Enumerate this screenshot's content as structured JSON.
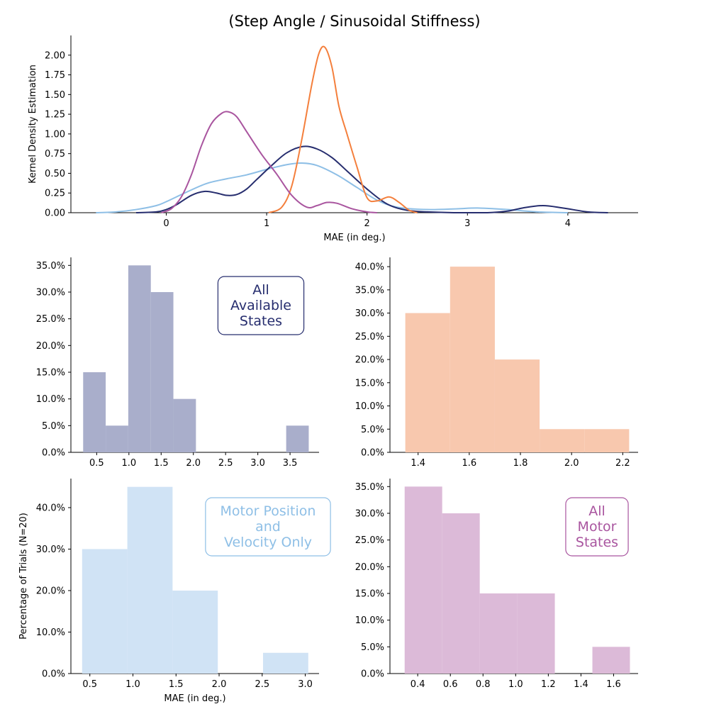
{
  "figure": {
    "title": "(Step Angle / Sinusoidal Stiffness)"
  },
  "chart_data": [
    {
      "type": "line",
      "xlabel": "MAE (in deg.)",
      "ylabel": "Kernel Density Estimation",
      "xlim": [
        -0.95,
        4.7
      ],
      "ylim": [
        0,
        2.25
      ],
      "xticks": [
        0,
        1,
        2,
        3,
        4
      ],
      "yticks": [
        0,
        0.25,
        0.5,
        0.75,
        1.0,
        1.25,
        1.5,
        1.75,
        2.0
      ],
      "ytick_decimals": 2,
      "grid": false,
      "series": [
        {
          "color": "#8ebfe6",
          "x": [
            -0.7,
            -0.5,
            -0.3,
            -0.1,
            0.0,
            0.2,
            0.4,
            0.6,
            0.8,
            1.0,
            1.2,
            1.35,
            1.5,
            1.7,
            1.9,
            2.1,
            2.3,
            2.6,
            2.9,
            3.1,
            3.4,
            3.7,
            4.0
          ],
          "y": [
            0.0,
            0.01,
            0.04,
            0.09,
            0.14,
            0.26,
            0.37,
            0.43,
            0.48,
            0.55,
            0.61,
            0.63,
            0.6,
            0.48,
            0.32,
            0.16,
            0.07,
            0.04,
            0.05,
            0.06,
            0.04,
            0.01,
            0.0
          ]
        },
        {
          "color": "#262d6e",
          "x": [
            -0.3,
            -0.1,
            0.0,
            0.1,
            0.25,
            0.38,
            0.5,
            0.6,
            0.7,
            0.8,
            0.9,
            1.05,
            1.2,
            1.36,
            1.5,
            1.65,
            1.8,
            2.0,
            2.2,
            2.4,
            2.6,
            2.9,
            3.2,
            3.4,
            3.55,
            3.75,
            3.95,
            4.2,
            4.4
          ],
          "y": [
            0.0,
            0.01,
            0.04,
            0.1,
            0.22,
            0.27,
            0.25,
            0.22,
            0.23,
            0.3,
            0.42,
            0.6,
            0.76,
            0.84,
            0.81,
            0.7,
            0.53,
            0.3,
            0.11,
            0.03,
            0.01,
            0.0,
            0.0,
            0.02,
            0.06,
            0.09,
            0.06,
            0.01,
            0.0
          ]
        },
        {
          "color": "#f47f3c",
          "x": [
            1.02,
            1.15,
            1.25,
            1.35,
            1.45,
            1.52,
            1.58,
            1.65,
            1.72,
            1.8,
            1.9,
            2.0,
            2.1,
            2.22,
            2.32,
            2.42,
            2.5
          ],
          "y": [
            0.0,
            0.07,
            0.34,
            0.93,
            1.63,
            2.02,
            2.1,
            1.85,
            1.35,
            1.0,
            0.58,
            0.19,
            0.15,
            0.2,
            0.13,
            0.03,
            0.0
          ]
        },
        {
          "color": "#a9559f",
          "x": [
            -0.05,
            0.05,
            0.15,
            0.25,
            0.35,
            0.45,
            0.55,
            0.62,
            0.7,
            0.8,
            0.95,
            1.1,
            1.25,
            1.4,
            1.5,
            1.6,
            1.7,
            1.85,
            2.0,
            2.1
          ],
          "y": [
            0.0,
            0.05,
            0.2,
            0.48,
            0.85,
            1.13,
            1.26,
            1.28,
            1.22,
            1.03,
            0.74,
            0.49,
            0.22,
            0.07,
            0.09,
            0.13,
            0.12,
            0.05,
            0.01,
            0.0
          ]
        }
      ]
    },
    {
      "type": "bar",
      "label": "All\nAvailable\nStates",
      "label_color": "#262d6e",
      "color": "#a9aecb",
      "xlim": [
        0.1,
        3.95
      ],
      "ylim": [
        0,
        36.5
      ],
      "xticks": [
        0.5,
        1.0,
        1.5,
        2.0,
        2.5,
        3.0,
        3.5
      ],
      "yticks": [
        0,
        5,
        10,
        15,
        20,
        25,
        30,
        35
      ],
      "xtick_decimals": 1,
      "bin_edges": [
        0.29,
        0.64,
        0.99,
        1.34,
        1.69,
        2.04,
        2.39,
        2.74,
        3.09,
        3.44,
        3.79
      ],
      "values": [
        15,
        5,
        35,
        30,
        10,
        0,
        0,
        0,
        0,
        5
      ]
    },
    {
      "type": "bar",
      "label_color": "#f47f3c",
      "color": "#f8c8ae",
      "xlim": [
        1.29,
        2.26
      ],
      "ylim": [
        0,
        42
      ],
      "xticks": [
        1.4,
        1.6,
        1.8,
        2.0,
        2.2
      ],
      "yticks": [
        0,
        5,
        10,
        15,
        20,
        25,
        30,
        35,
        40
      ],
      "xtick_decimals": 1,
      "bin_edges": [
        1.35,
        1.525,
        1.7,
        1.875,
        2.05,
        2.225
      ],
      "values": [
        30,
        40,
        20,
        5,
        5
      ]
    },
    {
      "type": "bar",
      "label": "Motor Position\nand\nVelocity Only",
      "label_color": "#8ebfe6",
      "color": "#d0e3f5",
      "xlabel": "MAE (in deg.)",
      "ylabel": "Percentage of Trials (N=20)",
      "xlim": [
        0.28,
        3.16
      ],
      "ylim": [
        0,
        47
      ],
      "xticks": [
        0.5,
        1.0,
        1.5,
        2.0,
        2.5,
        3.0
      ],
      "yticks": [
        0,
        10,
        20,
        30,
        40
      ],
      "xtick_decimals": 1,
      "bin_edges": [
        0.41,
        0.935,
        1.46,
        1.985,
        2.51,
        3.035
      ],
      "values": [
        30,
        45,
        20,
        0,
        5
      ]
    },
    {
      "type": "bar",
      "label": "All\nMotor\nStates",
      "label_color": "#a9559f",
      "color": "#dcbad8",
      "xlim": [
        0.23,
        1.75
      ],
      "ylim": [
        0,
        36.5
      ],
      "xticks": [
        0.4,
        0.6,
        0.8,
        1.0,
        1.2,
        1.4,
        1.6
      ],
      "yticks": [
        0,
        5,
        10,
        15,
        20,
        25,
        30,
        35
      ],
      "xtick_decimals": 1,
      "bin_edges": [
        0.32,
        0.55,
        0.78,
        1.01,
        1.24,
        1.47,
        1.7
      ],
      "values": [
        35,
        30,
        15,
        15,
        0,
        5
      ]
    }
  ]
}
